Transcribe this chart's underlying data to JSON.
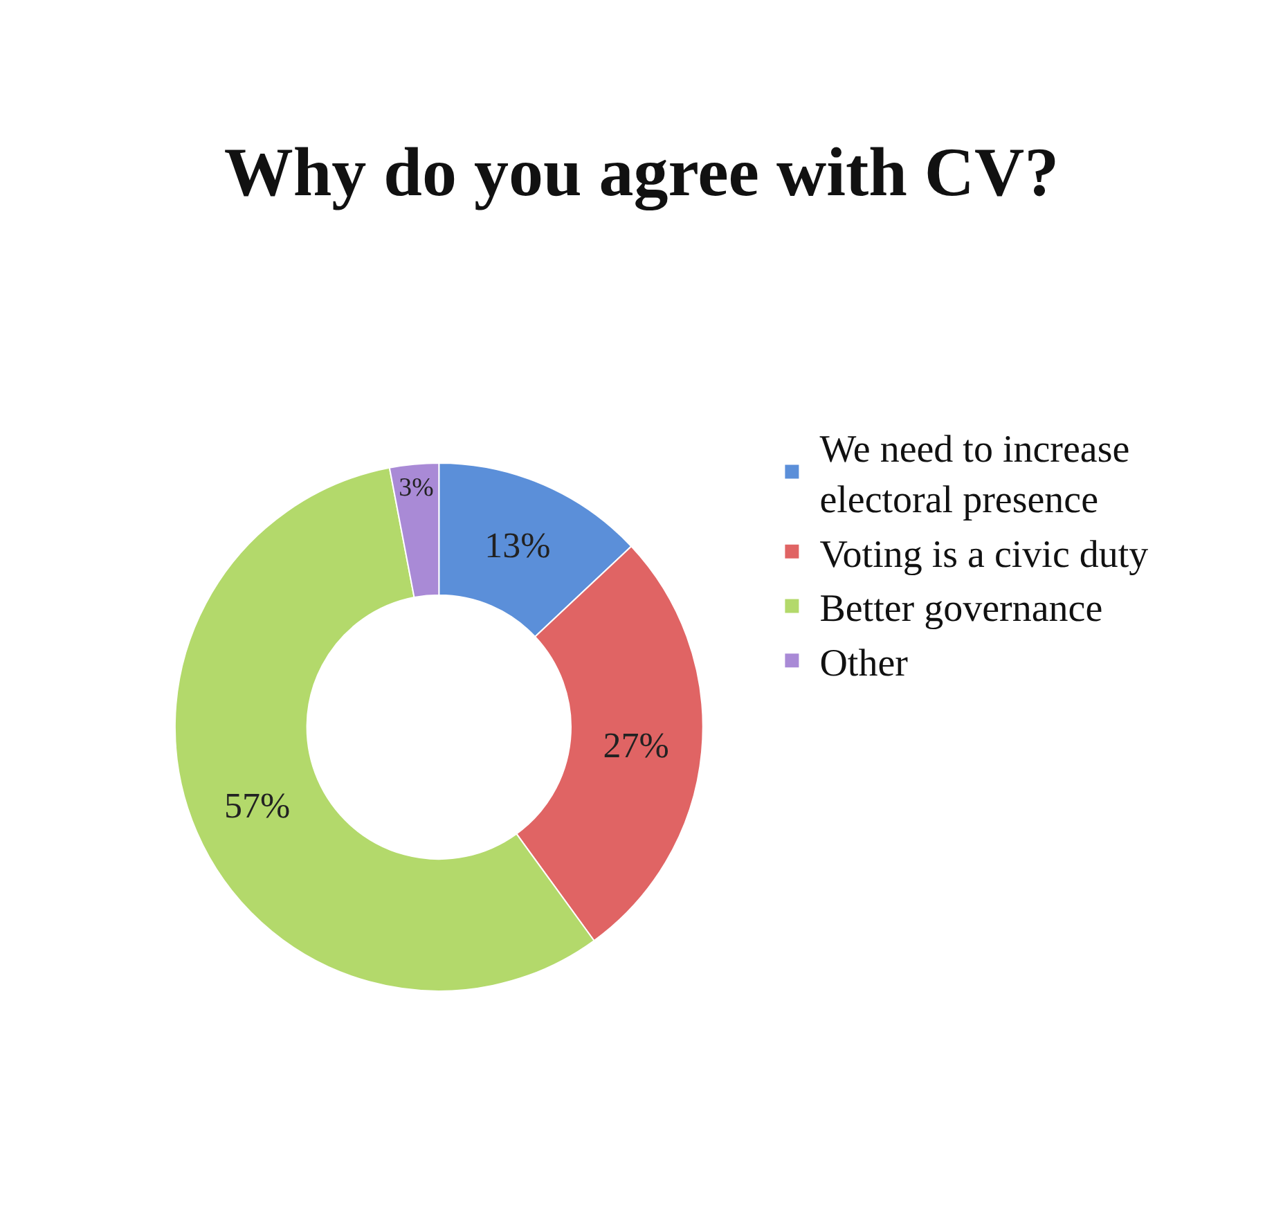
{
  "chart_data": {
    "type": "donut",
    "title": "Why do you agree with CV?",
    "categories": [
      "We need to increase electoral presence",
      "Voting is a civic duty",
      "Better governance",
      "Other"
    ],
    "values": [
      13,
      27,
      57,
      3
    ],
    "value_labels": [
      "13%",
      "27%",
      "57%",
      "3%"
    ],
    "colors": [
      "#5b8fd9",
      "#e06464",
      "#b3d96b",
      "#a98ad6"
    ],
    "legend": "right"
  }
}
